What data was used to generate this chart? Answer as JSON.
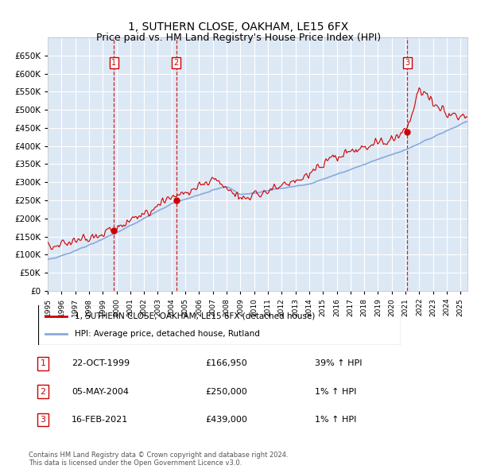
{
  "title": "1, SUTHERN CLOSE, OAKHAM, LE15 6FX",
  "subtitle": "Price paid vs. HM Land Registry's House Price Index (HPI)",
  "ylim": [
    0,
    700000
  ],
  "yticks": [
    0,
    50000,
    100000,
    150000,
    200000,
    250000,
    300000,
    350000,
    400000,
    450000,
    500000,
    550000,
    600000,
    650000
  ],
  "xlim_start": 1995.0,
  "xlim_end": 2025.5,
  "background_color": "#ffffff",
  "plot_bg_color": "#dde8f5",
  "grid_color": "#ffffff",
  "sale_color": "#cc0000",
  "hpi_color": "#88aadd",
  "transactions": [
    {
      "num": 1,
      "date": "22-OCT-1999",
      "price": 166950,
      "pct": "39%",
      "year": 1999.8
    },
    {
      "num": 2,
      "date": "05-MAY-2004",
      "price": 250000,
      "pct": "1%",
      "year": 2004.35
    },
    {
      "num": 3,
      "date": "16-FEB-2021",
      "price": 439000,
      "pct": "1%",
      "year": 2021.12
    }
  ],
  "footer": "Contains HM Land Registry data © Crown copyright and database right 2024.\nThis data is licensed under the Open Government Licence v3.0.",
  "legend_label_sale": "1, SUTHERN CLOSE, OAKHAM, LE15 6FX (detached house)",
  "legend_label_hpi": "HPI: Average price, detached house, Rutland",
  "title_fontsize": 10,
  "subtitle_fontsize": 9
}
